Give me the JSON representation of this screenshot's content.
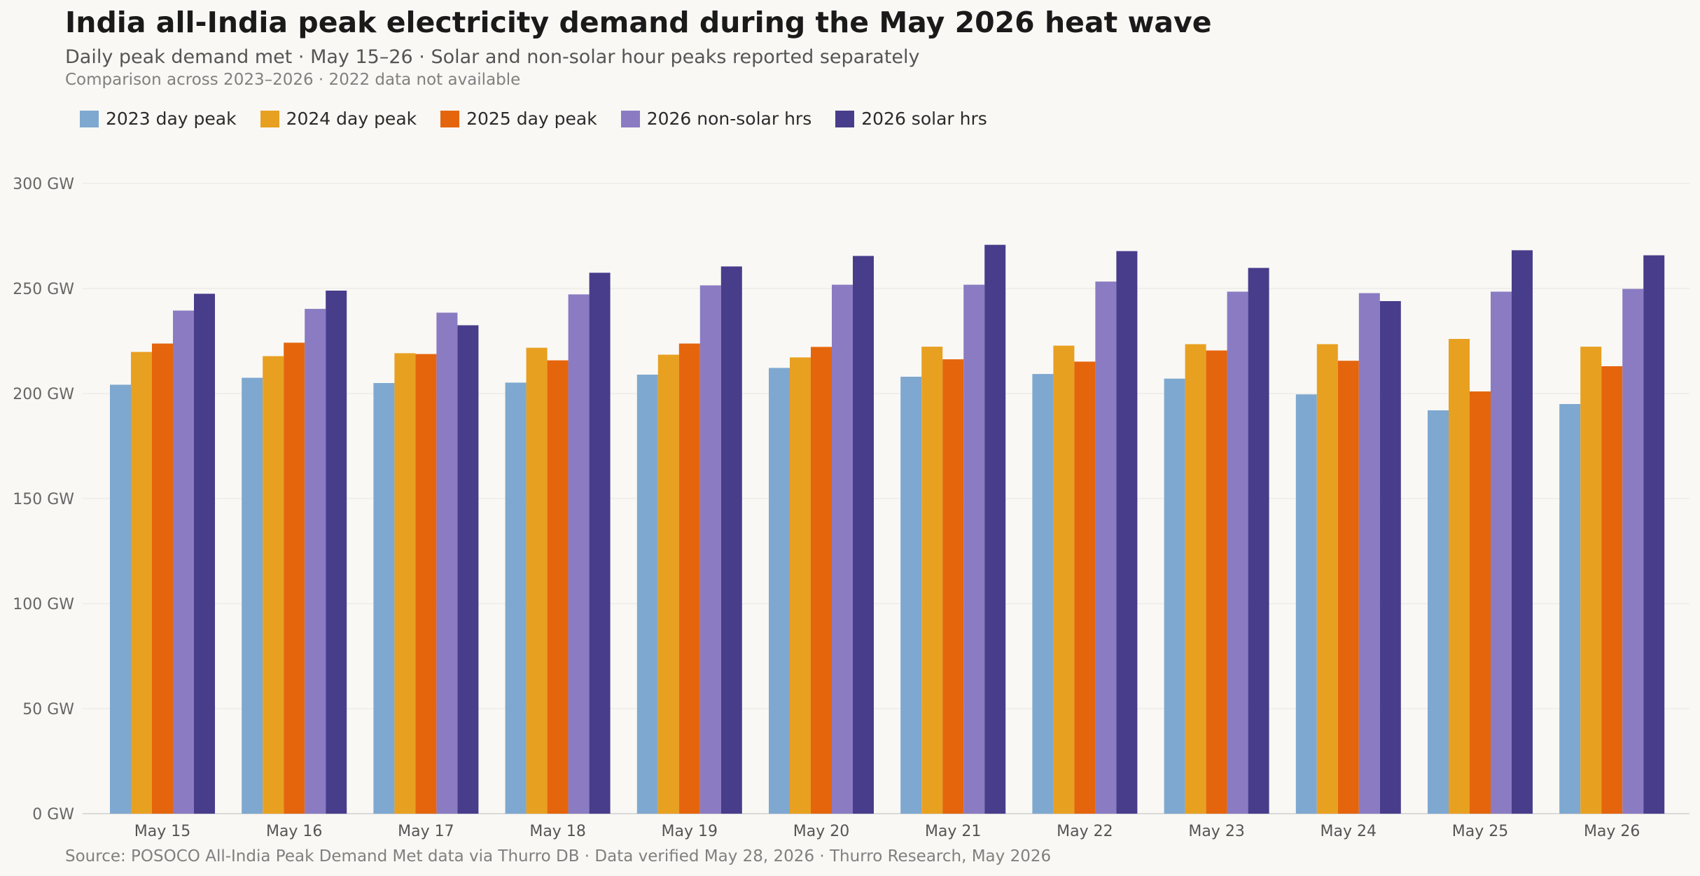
{
  "header": {
    "title": "India all-India peak electricity demand during the May 2026 heat wave",
    "subtitle": "Daily peak demand met  ·  May 15–26  ·  Solar and non-solar hour peaks reported separately",
    "subtitle2": "Comparison across 2023–2026  ·  2022 data not available"
  },
  "footer": {
    "source": "Source: POSOCO All-India Peak Demand Met data via Thurro DB  ·  Data verified May 28, 2026  ·  Thurro Research, May 2026"
  },
  "chart_data": {
    "type": "bar",
    "title": "India all-India peak electricity demand during the May 2026 heat wave",
    "xlabel": "",
    "ylabel": "",
    "unit": "GW",
    "ylim": [
      0,
      300
    ],
    "yticks": [
      0,
      50,
      100,
      150,
      200,
      250,
      300
    ],
    "ytick_labels": [
      "0 GW",
      "50 GW",
      "100 GW",
      "150 GW",
      "200 GW",
      "250 GW",
      "300 GW"
    ],
    "grid": true,
    "legend_position": "top-left",
    "categories": [
      "May 15",
      "May 16",
      "May 17",
      "May 18",
      "May 19",
      "May 20",
      "May 21",
      "May 22",
      "May 23",
      "May 24",
      "May 25",
      "May 26"
    ],
    "series": [
      {
        "name": "2023 day peak",
        "color": "#7ea8cf",
        "values": [
          204.2,
          207.5,
          205.0,
          205.2,
          209.0,
          212.2,
          208.0,
          209.3,
          207.1,
          199.6,
          192.0,
          195.0
        ]
      },
      {
        "name": "2024 day peak",
        "color": "#e8a020",
        "values": [
          219.8,
          217.8,
          219.2,
          221.8,
          218.5,
          217.2,
          222.3,
          222.8,
          223.5,
          223.5,
          226.0,
          222.3
        ]
      },
      {
        "name": "2025 day peak",
        "color": "#e5650d",
        "values": [
          223.8,
          224.2,
          218.8,
          215.8,
          223.8,
          222.2,
          216.3,
          215.2,
          220.5,
          215.6,
          201.0,
          213.0
        ]
      },
      {
        "name": "2026 non-solar hrs",
        "color": "#8b7bc2",
        "values": [
          239.5,
          240.3,
          238.5,
          247.2,
          251.5,
          251.8,
          251.8,
          253.3,
          248.5,
          247.8,
          248.5,
          249.8
        ]
      },
      {
        "name": "2026 solar hrs",
        "color": "#483d8b",
        "values": [
          247.5,
          249.0,
          232.5,
          257.5,
          260.5,
          265.5,
          270.8,
          267.8,
          259.8,
          244.0,
          268.2,
          265.8
        ]
      }
    ]
  }
}
